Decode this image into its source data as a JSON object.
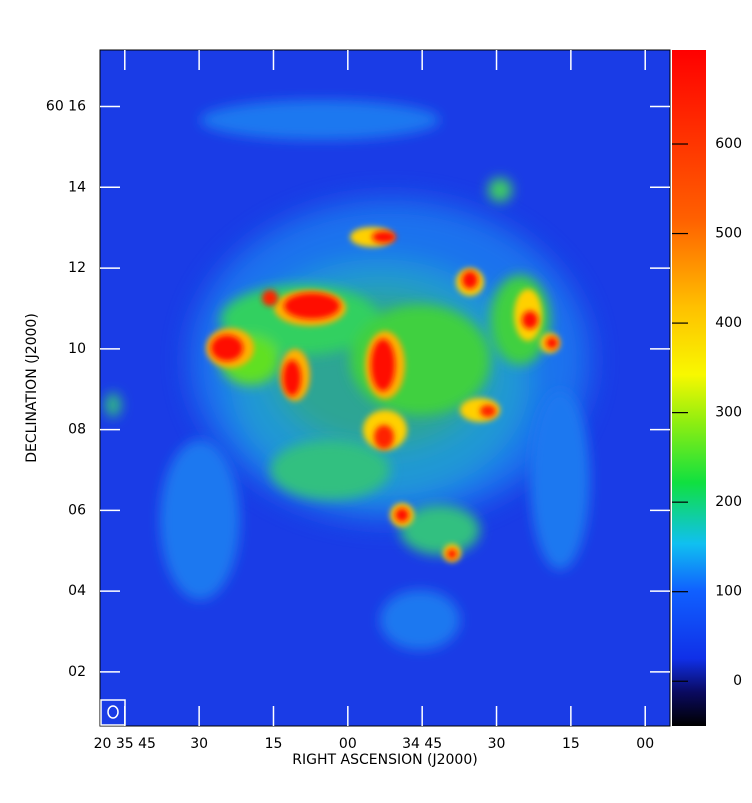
{
  "chart_data": {
    "type": "image",
    "xlabel": "RIGHT ASCENSION (J2000)",
    "ylabel": "DECLINATION (J2000)",
    "xlim": [
      2150,
      2035
    ],
    "xticks": [
      {
        "value": 2145,
        "label": "20 35 45"
      },
      {
        "value": 2130,
        "label": "30"
      },
      {
        "value": 2115,
        "label": "15"
      },
      {
        "value": 2100,
        "label": "00"
      },
      {
        "value": 2085,
        "label": "34 45"
      },
      {
        "value": 2070,
        "label": "30"
      },
      {
        "value": 2055,
        "label": "15"
      },
      {
        "value": 2040,
        "label": "00"
      }
    ],
    "ylim": [
      0.66,
      17.4
    ],
    "yticks": [
      {
        "value": 2,
        "label": "02"
      },
      {
        "value": 4,
        "label": "04"
      },
      {
        "value": 6,
        "label": "06"
      },
      {
        "value": 8,
        "label": "08"
      },
      {
        "value": 10,
        "label": "10"
      },
      {
        "value": 12,
        "label": "12"
      },
      {
        "value": 14,
        "label": "14"
      },
      {
        "value": 16,
        "label": "60 16"
      }
    ],
    "clim": [
      -50,
      705
    ],
    "cticks": [
      0,
      100,
      200,
      300,
      400,
      500,
      600
    ]
  }
}
